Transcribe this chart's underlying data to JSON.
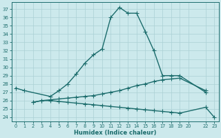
{
  "xlabel": "Humidex (Indice chaleur)",
  "bg_color": "#cce9ec",
  "grid_color": "#aad0d4",
  "line_color": "#1a6b6b",
  "markersize": 2.5,
  "linewidth": 1.0,
  "ylim": [
    23.5,
    37.8
  ],
  "yticks": [
    24,
    25,
    26,
    27,
    28,
    29,
    30,
    31,
    32,
    33,
    34,
    35,
    36,
    37
  ],
  "series1_x": [
    0,
    1,
    4,
    5,
    6,
    7,
    8,
    9,
    10,
    11,
    12,
    13,
    14,
    15,
    16,
    17,
    18,
    19,
    22
  ],
  "series1_y": [
    27.5,
    27.2,
    26.5,
    27.2,
    28.0,
    29.2,
    30.5,
    31.5,
    32.2,
    36.0,
    37.2,
    36.5,
    36.5,
    34.3,
    32.0,
    29.0,
    29.0,
    29.0,
    27.0
  ],
  "series2_x": [
    2,
    3,
    4,
    5,
    6,
    7,
    8,
    9,
    10,
    11,
    12,
    13,
    14,
    15,
    16,
    17,
    18,
    19,
    22
  ],
  "series2_y": [
    25.8,
    26.0,
    26.1,
    26.2,
    26.3,
    26.4,
    26.5,
    26.6,
    26.8,
    27.0,
    27.2,
    27.5,
    27.8,
    28.0,
    28.3,
    28.5,
    28.6,
    28.7,
    27.2
  ],
  "series3_x": [
    2,
    3,
    4,
    5,
    6,
    7,
    8,
    9,
    10,
    11,
    12,
    13,
    14,
    15,
    16,
    17,
    18,
    19,
    22,
    23
  ],
  "series3_y": [
    25.8,
    26.0,
    26.0,
    25.9,
    25.8,
    25.7,
    25.6,
    25.5,
    25.4,
    25.3,
    25.2,
    25.1,
    25.0,
    24.9,
    24.8,
    24.7,
    24.6,
    24.5,
    25.2,
    24.0
  ],
  "xtick_positions": [
    0,
    1,
    2,
    3,
    4,
    5,
    6,
    7,
    8,
    9,
    10,
    11,
    12,
    13,
    14,
    15,
    16,
    17,
    18,
    19,
    20,
    22,
    23
  ],
  "xtick_labels": [
    "0",
    "1",
    "2",
    "3",
    "4",
    "5",
    "6",
    "7",
    "8",
    "9",
    "10",
    "11",
    "12",
    "13",
    "14",
    "15",
    "16",
    "17",
    "18",
    "19",
    "20",
    "22",
    "23"
  ]
}
